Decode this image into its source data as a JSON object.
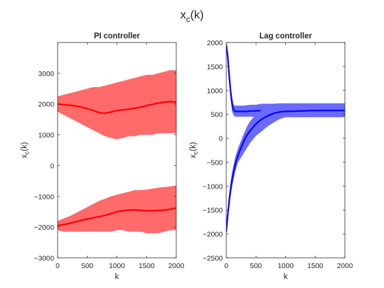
{
  "suptitle": "x_c(k)",
  "chart_data": [
    {
      "type": "area",
      "title": "PI controller",
      "xlabel": "k",
      "ylabel": "x_c(k)",
      "xlim": [
        0,
        2000
      ],
      "ylim": [
        -3000,
        4000
      ],
      "xticks": [
        0,
        500,
        1000,
        1500,
        2000
      ],
      "yticks": [
        -3000,
        -2000,
        -1000,
        0,
        1000,
        2000,
        3000
      ],
      "grid": false,
      "x": [
        0,
        100,
        200,
        300,
        400,
        500,
        600,
        700,
        800,
        900,
        1000,
        1100,
        1200,
        1300,
        1400,
        1500,
        1600,
        1700,
        1800,
        1900,
        2000
      ],
      "series": [
        {
          "color": "#ff0000",
          "band_color": "#ff6a6a",
          "mean": [
            2000,
            1980,
            1960,
            1940,
            1900,
            1850,
            1790,
            1720,
            1700,
            1740,
            1790,
            1810,
            1830,
            1860,
            1900,
            1950,
            1990,
            2030,
            2060,
            2080,
            2060
          ],
          "upper": [
            2250,
            2300,
            2350,
            2400,
            2450,
            2500,
            2550,
            2550,
            2600,
            2650,
            2700,
            2750,
            2800,
            2850,
            2900,
            2950,
            2950,
            3000,
            3050,
            3100,
            3100
          ],
          "lower": [
            1750,
            1650,
            1550,
            1450,
            1350,
            1250,
            1150,
            1050,
            950,
            900,
            850,
            900,
            950,
            950,
            1000,
            1000,
            1000,
            1050,
            1050,
            1050,
            1050
          ]
        },
        {
          "color": "#ff0000",
          "band_color": "#ff6a6a",
          "mean": [
            -1950,
            -1920,
            -1880,
            -1830,
            -1780,
            -1740,
            -1700,
            -1660,
            -1620,
            -1560,
            -1500,
            -1470,
            -1450,
            -1440,
            -1460,
            -1470,
            -1470,
            -1460,
            -1450,
            -1420,
            -1380
          ],
          "upper": [
            -1800,
            -1720,
            -1650,
            -1550,
            -1450,
            -1350,
            -1250,
            -1150,
            -1080,
            -1000,
            -950,
            -900,
            -850,
            -800,
            -800,
            -780,
            -750,
            -720,
            -700,
            -680,
            -650
          ],
          "lower": [
            -2100,
            -2150,
            -2150,
            -2150,
            -2150,
            -2150,
            -2150,
            -2150,
            -2150,
            -2150,
            -2100,
            -2100,
            -2150,
            -2150,
            -2150,
            -2200,
            -2200,
            -2200,
            -2150,
            -2100,
            -2100
          ]
        }
      ]
    },
    {
      "type": "area",
      "title": "Lag controller",
      "xlabel": "k",
      "ylabel": "x_c(k)",
      "xlim": [
        0,
        2000
      ],
      "ylim": [
        -2500,
        2000
      ],
      "xticks": [
        0,
        500,
        1000,
        1500,
        2000
      ],
      "yticks": [
        -2500,
        -2000,
        -1500,
        -1000,
        -500,
        0,
        500,
        1000,
        1500,
        2000
      ],
      "grid": false,
      "x": [
        0,
        25,
        50,
        75,
        100,
        125,
        150,
        200,
        250,
        300,
        350,
        400,
        500,
        600,
        700,
        800,
        900,
        1000,
        1250,
        1500,
        1750,
        2000
      ],
      "series": [
        {
          "color": "#0000ff",
          "band_color": "#6a6aff",
          "mean": [
            1950,
            1700,
            1300,
            950,
            700,
            590,
            560,
            560,
            560,
            560,
            560,
            570,
            570,
            580,
            580,
            580,
            580,
            580,
            580,
            580,
            580,
            580
          ],
          "upper": [
            2000,
            1800,
            1450,
            1100,
            850,
            700,
            680,
            680,
            680,
            680,
            690,
            700,
            700,
            720,
            720,
            720,
            720,
            720,
            720,
            720,
            720,
            720
          ],
          "lower": [
            1900,
            1600,
            1150,
            800,
            550,
            480,
            450,
            450,
            450,
            450,
            450,
            450,
            450,
            450,
            450,
            450,
            450,
            450,
            450,
            450,
            450,
            450
          ]
        },
        {
          "color": "#0000ff",
          "band_color": "#6a6aff",
          "mean": [
            -1950,
            -1600,
            -1300,
            -1050,
            -850,
            -700,
            -550,
            -350,
            -200,
            -50,
            70,
            150,
            300,
            400,
            470,
            520,
            550,
            560,
            570,
            580,
            580,
            580
          ],
          "upper": [
            -1900,
            -1500,
            -1150,
            -900,
            -700,
            -550,
            -400,
            -200,
            -50,
            100,
            250,
            350,
            500,
            600,
            680,
            720,
            730,
            730,
            730,
            730,
            730,
            730
          ],
          "lower": [
            -2000,
            -1700,
            -1450,
            -1200,
            -1000,
            -850,
            -700,
            -500,
            -400,
            -300,
            -200,
            -100,
            50,
            150,
            250,
            330,
            400,
            440,
            440,
            440,
            440,
            440
          ]
        }
      ]
    }
  ]
}
